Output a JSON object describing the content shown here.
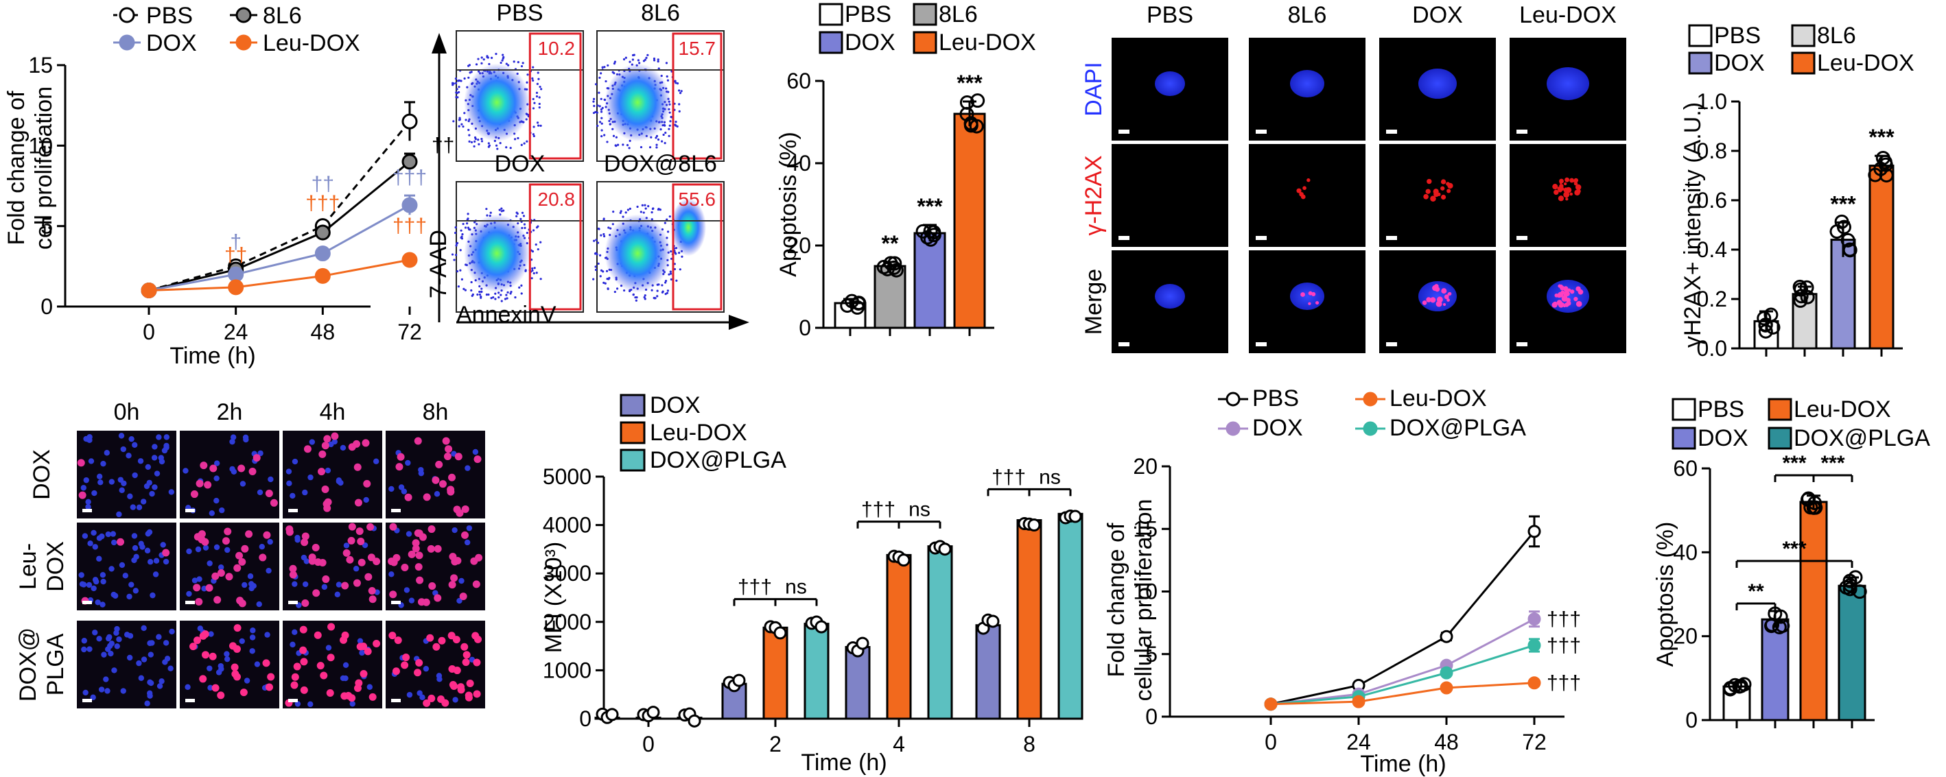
{
  "colors": {
    "pbs": "#ffffff",
    "l86": "#a6a6a6",
    "dox": "#7f8cc8",
    "dox_bar": "#7b7fd6",
    "dox_bar_b": "#8f92d4",
    "leu": "#f2691d",
    "plga": "#5cc0c0",
    "dox_purple": "#a98ac9",
    "plga_teal": "#36b8a4",
    "dagger_blue": "#7f8cc8",
    "dagger_orange": "#f2691d",
    "gate_red": "#e0202a",
    "dapi": "#1f2dff",
    "h2ax": "#e8191c"
  },
  "chart_data": [
    {
      "id": "A",
      "type": "line",
      "ylabel": "Fold change of cell proliferation",
      "ylabel_lines": [
        "Fold change of",
        "cell proliferation"
      ],
      "xlabel": "Time (h)",
      "x": [
        0,
        24,
        48,
        72
      ],
      "xticks": [
        "0",
        "24",
        "48",
        "72"
      ],
      "ylim": [
        0,
        15
      ],
      "yticks": [
        0,
        5,
        10,
        15
      ],
      "legend": [
        "PBS",
        "8L6",
        "DOX",
        "Leu-DOX"
      ],
      "series": [
        {
          "name": "PBS",
          "values": [
            1.0,
            2.5,
            5.0,
            11.5
          ],
          "err": [
            0.1,
            0.2,
            0.3,
            1.2
          ]
        },
        {
          "name": "8L6",
          "values": [
            1.0,
            2.3,
            4.6,
            9.0
          ],
          "err": [
            0.1,
            0.2,
            0.3,
            0.5
          ]
        },
        {
          "name": "DOX",
          "values": [
            1.0,
            2.0,
            3.3,
            6.3
          ],
          "err": [
            0.1,
            0.2,
            0.2,
            0.6
          ]
        },
        {
          "name": "Leu-DOX",
          "values": [
            1.0,
            1.2,
            1.9,
            2.9
          ],
          "err": [
            0.1,
            0.1,
            0.1,
            0.1
          ]
        }
      ],
      "annotations": [
        {
          "x": 24,
          "y": 3.6,
          "text": "†",
          "series": "DOX"
        },
        {
          "x": 24,
          "y": 2.8,
          "text": "††",
          "series": "Leu-DOX"
        },
        {
          "x": 48,
          "y": 7.2,
          "text": "††",
          "series": "DOX"
        },
        {
          "x": 48,
          "y": 6.0,
          "text": "†††",
          "series": "Leu-DOX"
        },
        {
          "x": 72,
          "y": 7.6,
          "text": "†††",
          "series": "DOX"
        },
        {
          "x": 72,
          "y": 4.6,
          "text": "†††",
          "series": "Leu-DOX"
        },
        {
          "x": 72,
          "y": 9.6,
          "text": "††",
          "series": "8L6"
        }
      ]
    },
    {
      "id": "C",
      "type": "bar",
      "ylabel": "Apoptosis (%)",
      "ylim": [
        0,
        60
      ],
      "yticks": [
        0,
        20,
        40,
        60
      ],
      "categories": [
        "PBS",
        "8L6",
        "DOX",
        "Leu-DOX"
      ],
      "values": [
        6,
        15,
        23,
        52
      ],
      "err": [
        1,
        1,
        2,
        3
      ],
      "significance": [
        "",
        "**",
        "***",
        "***"
      ],
      "legend": [
        "PBS",
        "8L6",
        "DOX",
        "Leu-DOX"
      ]
    },
    {
      "id": "E",
      "type": "bar",
      "ylabel": "γH2AX+ intensity (A.U.)",
      "ylim": [
        0,
        1.0
      ],
      "yticks": [
        0.0,
        0.2,
        0.4,
        0.6,
        0.8,
        1.0
      ],
      "categories": [
        "PBS",
        "8L6",
        "DOX",
        "Leu-DOX"
      ],
      "values": [
        0.11,
        0.22,
        0.44,
        0.74
      ],
      "err": [
        0.04,
        0.03,
        0.07,
        0.04
      ],
      "significance": [
        "",
        "",
        "***",
        "***"
      ],
      "legend": [
        "PBS",
        "8L6",
        "DOX",
        "Leu-DOX"
      ]
    },
    {
      "id": "G",
      "type": "bar",
      "ylabel": "MFI (X10³)",
      "xlabel": "Time (h)",
      "categories": [
        "0",
        "2",
        "4",
        "8"
      ],
      "ylim": [
        0,
        5000
      ],
      "yticks": [
        0,
        1000,
        2000,
        3000,
        4000,
        5000
      ],
      "series": [
        {
          "name": "DOX",
          "values": [
            20,
            720,
            1480,
            1930
          ]
        },
        {
          "name": "Leu-DOX",
          "values": [
            20,
            1880,
            3380,
            4100
          ]
        },
        {
          "name": "DOX@PLGA",
          "values": [
            20,
            1960,
            3560,
            4230
          ]
        }
      ],
      "brackets": [
        {
          "cat": "2",
          "text": "†††"
        },
        {
          "cat": "2",
          "text": "ns"
        },
        {
          "cat": "4",
          "text": "†††"
        },
        {
          "cat": "4",
          "text": "ns"
        },
        {
          "cat": "8",
          "text": "†††"
        },
        {
          "cat": "8",
          "text": "ns"
        }
      ]
    },
    {
      "id": "H",
      "type": "line",
      "ylabel": "Fold change of cellular proliferation",
      "ylabel_lines": [
        "Fold change of",
        "cellular proliferation"
      ],
      "xlabel": "Time (h)",
      "x": [
        0,
        24,
        48,
        72
      ],
      "xticks": [
        "0",
        "24",
        "48",
        "72"
      ],
      "ylim": [
        0,
        20
      ],
      "yticks": [
        0,
        5,
        10,
        15,
        20
      ],
      "series": [
        {
          "name": "PBS",
          "values": [
            1.0,
            2.5,
            6.4,
            14.8
          ],
          "err": [
            0.1,
            0.2,
            0.3,
            1.2
          ]
        },
        {
          "name": "DOX",
          "values": [
            1.0,
            1.8,
            4.1,
            7.8
          ],
          "err": [
            0.1,
            0.1,
            0.2,
            0.6
          ]
        },
        {
          "name": "DOX@PLGA",
          "values": [
            1.0,
            1.6,
            3.5,
            5.7
          ],
          "err": [
            0.1,
            0.1,
            0.2,
            0.5
          ]
        },
        {
          "name": "Leu-DOX",
          "values": [
            1.0,
            1.2,
            2.3,
            2.7
          ],
          "err": [
            0.1,
            0.1,
            0.1,
            0.1
          ]
        }
      ],
      "annotations": [
        {
          "series": "DOX",
          "text": "†††"
        },
        {
          "series": "DOX@PLGA",
          "text": "†††"
        },
        {
          "series": "Leu-DOX",
          "text": "†††"
        }
      ],
      "legend": [
        "PBS",
        "Leu-DOX",
        "DOX",
        "DOX@PLGA"
      ]
    },
    {
      "id": "I",
      "type": "bar",
      "ylabel": "Apoptosis (%)",
      "ylim": [
        0,
        60
      ],
      "yticks": [
        0,
        20,
        40,
        60
      ],
      "categories": [
        "PBS",
        "DOX",
        "Leu-DOX",
        "DOX@PLGA"
      ],
      "values": [
        8,
        24,
        52,
        32
      ],
      "err": [
        1,
        2,
        1.5,
        2
      ],
      "legend": [
        "PBS",
        "Leu-DOX",
        "DOX",
        "DOX@PLGA"
      ],
      "comparisons": [
        {
          "from": "PBS",
          "to": "DOX",
          "text": "**"
        },
        {
          "from": "DOX",
          "to": "Leu-DOX",
          "text": "***"
        },
        {
          "from": "Leu-DOX",
          "to": "DOX@PLGA",
          "text": "***"
        },
        {
          "from": "PBS",
          "to": "DOX@PLGA",
          "text": "***"
        }
      ]
    }
  ],
  "flow": {
    "titles": [
      "PBS",
      "8L6",
      "DOX",
      "DOX@8L6"
    ],
    "values": [
      "10.2",
      "15.7",
      "20.8",
      "55.6"
    ],
    "ylabel": "7-AAD",
    "xlabel": "AnnexinV"
  },
  "microscopy_d": {
    "cols": [
      "PBS",
      "8L6",
      "DOX",
      "Leu-DOX"
    ],
    "rows": [
      "DAPI",
      "γ-H2AX",
      "Merge"
    ]
  },
  "microscopy_f": {
    "cols": [
      "0h",
      "2h",
      "4h",
      "8h"
    ],
    "rows": [
      "DOX",
      "Leu-DOX",
      "DOX@PLGA"
    ],
    "row_lines": [
      [
        "DOX"
      ],
      [
        "Leu-",
        "DOX"
      ],
      [
        "DOX@",
        "PLGA"
      ]
    ]
  }
}
